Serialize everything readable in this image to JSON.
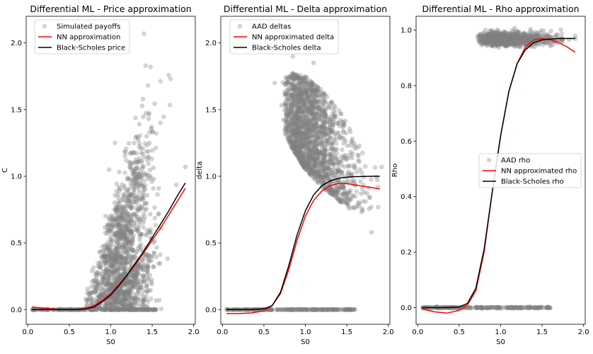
{
  "chart_data": [
    {
      "type": "scatter",
      "title": "Differential ML - Price approximation",
      "xlabel": "S0",
      "ylabel": "C",
      "xlim": [
        -0.02,
        2.02
      ],
      "ylim": [
        -0.11,
        2.2
      ],
      "xticks": [
        0.0,
        0.5,
        1.0,
        1.5,
        2.0
      ],
      "xtick_labels": [
        "0.0",
        "0.5",
        "1.0",
        "1.5",
        "2.0"
      ],
      "yticks": [
        0.0,
        0.5,
        1.0,
        1.5,
        2.0
      ],
      "ytick_labels": [
        "0.0",
        "0.5",
        "1.0",
        "1.5",
        "2.0"
      ],
      "legend_position": "top-left",
      "scatter": {
        "name": "Simulated payoffs",
        "color": "#808080",
        "clusters": [
          {
            "type": "zero_band",
            "x_range": [
              0.05,
              1.55
            ],
            "y": 0.0
          },
          {
            "type": "payoff",
            "x_center": 1.15,
            "x_spread": 0.18,
            "threshold": 0.68,
            "slope": 0.95,
            "noise": 0.22
          }
        ],
        "outliers": [
          [
            1.4,
            2.07
          ],
          [
            1.42,
            1.83
          ],
          [
            1.48,
            1.82
          ],
          [
            1.7,
            1.76
          ],
          [
            1.72,
            1.73
          ],
          [
            1.05,
            1.25
          ],
          [
            0.98,
            1.05
          ],
          [
            1.9,
            1.07
          ],
          [
            1.6,
            1.4
          ]
        ]
      },
      "series": [
        {
          "name": "NN approximation",
          "color": "#ff0000",
          "x": [
            0.05,
            0.2,
            0.4,
            0.6,
            0.7,
            0.8,
            0.9,
            1.0,
            1.1,
            1.2,
            1.3,
            1.4,
            1.5,
            1.6,
            1.7,
            1.8,
            1.9
          ],
          "y": [
            0.02,
            0.01,
            0.0,
            0.0,
            0.01,
            0.03,
            0.07,
            0.12,
            0.19,
            0.26,
            0.34,
            0.43,
            0.52,
            0.61,
            0.71,
            0.81,
            0.91
          ]
        },
        {
          "name": "Black-Scholes price",
          "color": "#000000",
          "x": [
            0.05,
            0.2,
            0.4,
            0.6,
            0.7,
            0.8,
            0.9,
            1.0,
            1.1,
            1.2,
            1.3,
            1.4,
            1.5,
            1.6,
            1.7,
            1.8,
            1.9
          ],
          "y": [
            0.0,
            0.0,
            0.0,
            0.0,
            0.005,
            0.02,
            0.06,
            0.11,
            0.18,
            0.26,
            0.35,
            0.44,
            0.54,
            0.64,
            0.74,
            0.85,
            0.95
          ]
        }
      ]
    },
    {
      "type": "scatter",
      "title": "Differential ML - Delta approximation",
      "xlabel": "S0",
      "ylabel": "delta",
      "xlim": [
        -0.02,
        2.02
      ],
      "ylim": [
        -0.11,
        2.2
      ],
      "xticks": [
        0.0,
        0.5,
        1.0,
        1.5,
        2.0
      ],
      "xtick_labels": [
        "0.0",
        "0.5",
        "1.0",
        "1.5",
        "2.0"
      ],
      "yticks": [
        0.0,
        0.5,
        1.0,
        1.5,
        2.0
      ],
      "ytick_labels": [
        "0.0",
        "0.5",
        "1.0",
        "1.5",
        "2.0"
      ],
      "legend_position": "top-left",
      "scatter": {
        "name": "AAD deltas",
        "color": "#808080",
        "clusters": [
          {
            "type": "zero_band",
            "x_range": [
              0.05,
              1.6
            ],
            "y": 0.0
          },
          {
            "type": "delta_cloud",
            "x_range": [
              0.7,
              1.9
            ],
            "upper": [
              [
                0.72,
                1.75
              ],
              [
                0.85,
                1.78
              ],
              [
                1.0,
                1.75
              ],
              [
                1.2,
                1.65
              ],
              [
                1.4,
                1.5
              ],
              [
                1.6,
                1.3
              ],
              [
                1.8,
                1.1
              ]
            ],
            "lower": [
              [
                0.72,
                1.35
              ],
              [
                0.85,
                1.2
              ],
              [
                1.0,
                1.05
              ],
              [
                1.2,
                0.92
              ],
              [
                1.4,
                0.82
              ],
              [
                1.6,
                0.72
              ],
              [
                1.8,
                0.72
              ]
            ]
          }
        ],
        "outliers": [
          [
            0.62,
            1.95
          ],
          [
            0.85,
            1.9
          ],
          [
            1.1,
            1.85
          ],
          [
            1.92,
            1.07
          ],
          [
            1.8,
            0.58
          ],
          [
            0.63,
            1.7
          ]
        ]
      },
      "series": [
        {
          "name": "NN approximated delta",
          "color": "#ff0000",
          "x": [
            0.05,
            0.2,
            0.35,
            0.5,
            0.6,
            0.7,
            0.8,
            0.9,
            1.0,
            1.1,
            1.2,
            1.3,
            1.4,
            1.5,
            1.6,
            1.7,
            1.8,
            1.9
          ],
          "y": [
            -0.03,
            -0.03,
            -0.025,
            -0.01,
            0.03,
            0.12,
            0.3,
            0.52,
            0.7,
            0.82,
            0.89,
            0.93,
            0.945,
            0.945,
            0.935,
            0.925,
            0.915,
            0.905
          ]
        },
        {
          "name": "Black-Scholes delta",
          "color": "#000000",
          "x": [
            0.05,
            0.2,
            0.35,
            0.5,
            0.6,
            0.7,
            0.8,
            0.9,
            1.0,
            1.1,
            1.2,
            1.3,
            1.4,
            1.5,
            1.6,
            1.7,
            1.8,
            1.9
          ],
          "y": [
            0.0,
            0.0,
            0.0,
            0.005,
            0.03,
            0.13,
            0.33,
            0.56,
            0.74,
            0.86,
            0.93,
            0.965,
            0.985,
            0.993,
            0.997,
            0.999,
            1.0,
            1.0
          ]
        }
      ]
    },
    {
      "type": "scatter",
      "title": "Differential ML - Rho approximation",
      "xlabel": "S0",
      "ylabel": "Rho",
      "xlim": [
        -0.02,
        2.02
      ],
      "ylim": [
        -0.06,
        1.05
      ],
      "xticks": [
        0.0,
        0.5,
        1.0,
        1.5,
        2.0
      ],
      "xtick_labels": [
        "0.0",
        "0.5",
        "1.0",
        "1.5",
        "2.0"
      ],
      "yticks": [
        0.0,
        0.2,
        0.4,
        0.6,
        0.8,
        1.0
      ],
      "ytick_labels": [
        "0.0",
        "0.2",
        "0.4",
        "0.6",
        "0.8",
        "1.0"
      ],
      "legend_position": "center-right",
      "scatter": {
        "name": "AAD rho",
        "color": "#808080",
        "clusters": [
          {
            "type": "zero_band",
            "x_range": [
              0.05,
              1.6
            ],
            "y": 0.0
          },
          {
            "type": "top_band",
            "x_range": [
              0.6,
              1.9
            ],
            "y": 0.968,
            "spread": 0.012
          }
        ],
        "outliers": []
      },
      "series": [
        {
          "name": "NN approximated rho",
          "color": "#ff0000",
          "x": [
            0.05,
            0.2,
            0.35,
            0.5,
            0.6,
            0.7,
            0.8,
            0.9,
            1.0,
            1.1,
            1.2,
            1.3,
            1.4,
            1.5,
            1.6,
            1.7,
            1.8,
            1.9
          ],
          "y": [
            -0.005,
            -0.015,
            -0.02,
            -0.01,
            0.01,
            0.06,
            0.2,
            0.42,
            0.62,
            0.78,
            0.88,
            0.94,
            0.965,
            0.97,
            0.965,
            0.955,
            0.94,
            0.92
          ]
        },
        {
          "name": "Black-Scholes rho",
          "color": "#000000",
          "x": [
            0.05,
            0.2,
            0.35,
            0.5,
            0.6,
            0.7,
            0.8,
            0.9,
            1.0,
            1.1,
            1.2,
            1.3,
            1.4,
            1.5,
            1.6,
            1.7,
            1.8,
            1.9
          ],
          "y": [
            0.0,
            0.0,
            0.0,
            0.002,
            0.015,
            0.07,
            0.21,
            0.42,
            0.62,
            0.78,
            0.88,
            0.93,
            0.955,
            0.965,
            0.968,
            0.97,
            0.97,
            0.97
          ]
        }
      ]
    }
  ]
}
